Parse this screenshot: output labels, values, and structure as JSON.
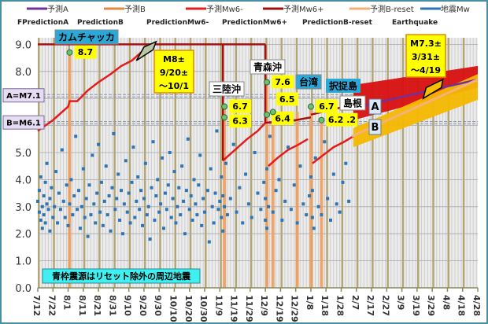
{
  "chart_data": {
    "type": "scatter",
    "title": "",
    "xlabel": "",
    "ylabel": "",
    "x_start_date": "7/12",
    "x_unit": "days since 7/12",
    "xlim": [
      0,
      290
    ],
    "ylim": [
      0,
      9.5
    ],
    "grid": true,
    "legend_position": "top",
    "legend": [
      {
        "jp": "予測A",
        "en": "FPredictionA",
        "color": "#7030a0"
      },
      {
        "jp": "予測B",
        "en": "PredictionB",
        "color": "#e08a3c"
      },
      {
        "jp": "予測Mw6-",
        "en": "PredictionMw6-",
        "color": "#e02020"
      },
      {
        "jp": "予測Mw6+",
        "en": "PredictionMw6+",
        "color": "#a01010"
      },
      {
        "jp": "予測B-reset",
        "en": "PredictionB-reset",
        "color": "#f2b070"
      },
      {
        "jp": "地震Mw",
        "en": "Earthquake",
        "color": "#2e75b6"
      }
    ],
    "x_ticks": [
      "7/12",
      "7/22",
      "8/1",
      "8/11",
      "8/21",
      "8/31",
      "9/10",
      "9/20",
      "9/30",
      "10/10",
      "10/20",
      "10/30",
      "11/9",
      "11/19",
      "11/29",
      "12/9",
      "12/19",
      "12/29",
      "1/8",
      "1/18",
      "1/28",
      "2/7",
      "2/17",
      "2/27",
      "3/9",
      "3/19",
      "3/29",
      "4/8",
      "4/18",
      "4/28"
    ],
    "y_ticks": [
      {
        "value": 0,
        "label": "0.0"
      },
      {
        "value": 1,
        "label": "1.0"
      },
      {
        "value": 2,
        "label": "2.0"
      },
      {
        "value": 3,
        "label": "3.0"
      },
      {
        "value": 4,
        "label": "4.0"
      },
      {
        "value": 5,
        "label": "5.0"
      },
      {
        "value": 8,
        "label": "8.0"
      },
      {
        "value": 9,
        "label": "9.0"
      }
    ],
    "reference_lines": [
      {
        "name": "A",
        "value": 7.1,
        "label": "A=M7.1"
      },
      {
        "name": "B",
        "value": 6.1,
        "label": "B=M6.1"
      }
    ],
    "series": [
      {
        "name": "予測Mw6-",
        "color": "#e41c1c",
        "segments": [
          [
            [
              0,
              5.8
            ],
            [
              10,
              6.2
            ],
            [
              20,
              6.7
            ],
            [
              21,
              6.9
            ],
            [
              26,
              6.9
            ],
            [
              33,
              7.3
            ],
            [
              40,
              7.6
            ],
            [
              48,
              7.9
            ],
            [
              55,
              8.2
            ],
            [
              62,
              8.4
            ],
            [
              70,
              8.8
            ],
            [
              74,
              8.9
            ]
          ],
          [
            [
              122,
              4.7
            ],
            [
              130,
              5.1
            ],
            [
              138,
              5.5
            ],
            [
              145,
              5.8
            ],
            [
              150,
              6.1
            ]
          ],
          [
            [
              152,
              4.5
            ],
            [
              158,
              4.8
            ],
            [
              165,
              5.1
            ],
            [
              172,
              5.3
            ],
            [
              178,
              5.5
            ]
          ],
          [
            [
              181,
              4.6
            ],
            [
              188,
              4.9
            ],
            [
              195,
              5.2
            ],
            [
              202,
              5.4
            ],
            [
              208,
              5.6
            ]
          ]
        ]
      },
      {
        "name": "予測Mw6+",
        "color": "#a81010",
        "segments": [
          [
            [
              0,
              9.0
            ],
            [
              150,
              9.0
            ]
          ],
          [
            [
              122,
              9.0
            ],
            [
              122,
              4.7
            ]
          ],
          [
            [
              150,
              9.0
            ],
            [
              150,
              6.1
            ]
          ],
          [
            [
              150,
              6.1
            ],
            [
              170,
              6.2
            ],
            [
              180,
              6.3
            ]
          ],
          [
            [
              180,
              6.4
            ],
            [
              195,
              6.6
            ],
            [
              210,
              6.8
            ],
            [
              216,
              6.9
            ]
          ]
        ]
      },
      {
        "name": "予測A",
        "color": "#7030a0",
        "segments": [
          [
            [
              208,
              6.65
            ],
            [
              290,
              7.7
            ]
          ]
        ]
      },
      {
        "name": "予測B-reset",
        "color": "#f4b27a",
        "segments": [
          [
            [
              207,
              5.6
            ],
            [
              290,
              7.7
            ]
          ]
        ]
      }
    ],
    "bands": [
      {
        "name": "A-range",
        "color": "#d81010",
        "upper": [
          [
            208,
            7.5
          ],
          [
            290,
            8.2
          ]
        ],
        "lower": [
          [
            208,
            6.2
          ],
          [
            290,
            7.4
          ]
        ]
      },
      {
        "name": "B-range",
        "color": "#f5b800",
        "upper": [
          [
            208,
            5.9
          ],
          [
            290,
            7.9
          ]
        ],
        "lower": [
          [
            208,
            5.2
          ],
          [
            290,
            6.95
          ]
        ]
      }
    ],
    "forecast_windows": [
      {
        "name": "M8-window",
        "points": [
          [
            65,
            8.4
          ],
          [
            76,
            8.8
          ],
          [
            78,
            9.1
          ],
          [
            70,
            8.9
          ]
        ]
      },
      {
        "name": "M7.3-window",
        "points": [
          [
            254,
            7.0
          ],
          [
            266,
            7.4
          ],
          [
            267,
            7.7
          ],
          [
            256,
            7.4
          ]
        ]
      }
    ],
    "major_quakes": [
      {
        "day": 21,
        "mags": [
          8.7
        ],
        "labels": [
          "8.7"
        ],
        "place": "カムチャッカ"
      },
      {
        "day": 123,
        "mags": [
          6.7,
          6.3
        ],
        "labels": [
          "6.7",
          "6.3"
        ],
        "place": "三陸沖"
      },
      {
        "day": 151,
        "mags": [
          7.6,
          6.4
        ],
        "labels": [
          "7.6",
          "6.4"
        ],
        "place": "青森沖"
      },
      {
        "day": 155,
        "mags": [
          6.5
        ],
        "labels": [
          "6.5"
        ],
        "place": ""
      },
      {
        "day": 171,
        "mags": [],
        "labels": [],
        "place": "台湾"
      },
      {
        "day": 180,
        "mags": [
          6.7
        ],
        "labels": [
          "6.7"
        ],
        "place": "島根"
      },
      {
        "day": 187,
        "mags": [
          6.2
        ],
        "labels": [
          "6.2 .2"
        ],
        "place": ""
      }
    ],
    "annotations": {
      "m8_callout": [
        "M8±",
        "9/20±",
        "～10/1"
      ],
      "m73_callout": [
        "M7.3±",
        "3/31±",
        "～4/19"
      ],
      "etorofu": "択捉島",
      "badge_a": "A",
      "badge_b": "B",
      "note": "青枠震源はリセット除外の周辺地震"
    },
    "points": [
      [
        0,
        3.2
      ],
      [
        1,
        2.8
      ],
      [
        1,
        3.6
      ],
      [
        2,
        2.5
      ],
      [
        2,
        4.1
      ],
      [
        3,
        3.0
      ],
      [
        3,
        2.2
      ],
      [
        4,
        3.4
      ],
      [
        4,
        2.7
      ],
      [
        5,
        3.9
      ],
      [
        5,
        2.4
      ],
      [
        6,
        3.1
      ],
      [
        6,
        4.6
      ],
      [
        7,
        2.9
      ],
      [
        8,
        3.3
      ],
      [
        8,
        2.1
      ],
      [
        9,
        3.7
      ],
      [
        10,
        2.6
      ],
      [
        11,
        3.0
      ],
      [
        12,
        4.3
      ],
      [
        13,
        2.4
      ],
      [
        14,
        3.5
      ],
      [
        15,
        2.9
      ],
      [
        16,
        5.1
      ],
      [
        17,
        3.2
      ],
      [
        18,
        2.6
      ],
      [
        19,
        3.8
      ],
      [
        20,
        2.3
      ],
      [
        21,
        3.1
      ],
      [
        22,
        4.0
      ],
      [
        23,
        2.7
      ],
      [
        24,
        3.4
      ],
      [
        25,
        5.6
      ],
      [
        26,
        2.9
      ],
      [
        27,
        3.6
      ],
      [
        28,
        2.2
      ],
      [
        29,
        3.0
      ],
      [
        30,
        4.4
      ],
      [
        31,
        2.6
      ],
      [
        32,
        3.3
      ],
      [
        33,
        1.9
      ],
      [
        34,
        3.8
      ],
      [
        35,
        2.7
      ],
      [
        36,
        4.9
      ],
      [
        37,
        3.1
      ],
      [
        38,
        2.4
      ],
      [
        39,
        3.5
      ],
      [
        40,
        5.3
      ],
      [
        41,
        2.8
      ],
      [
        42,
        3.9
      ],
      [
        43,
        2.3
      ],
      [
        44,
        3.2
      ],
      [
        45,
        4.5
      ],
      [
        46,
        2.7
      ],
      [
        47,
        3.4
      ],
      [
        48,
        2.1
      ],
      [
        49,
        3.7
      ],
      [
        50,
        5.7
      ],
      [
        51,
        2.9
      ],
      [
        52,
        3.3
      ],
      [
        53,
        4.2
      ],
      [
        54,
        2.5
      ],
      [
        55,
        3.6
      ],
      [
        56,
        2.0
      ],
      [
        57,
        3.1
      ],
      [
        58,
        4.7
      ],
      [
        59,
        2.8
      ],
      [
        60,
        3.5
      ],
      [
        61,
        2.4
      ],
      [
        62,
        3.9
      ],
      [
        63,
        5.2
      ],
      [
        64,
        2.6
      ],
      [
        65,
        3.2
      ],
      [
        66,
        4.1
      ],
      [
        67,
        2.9
      ],
      [
        68,
        3.6
      ],
      [
        69,
        2.3
      ],
      [
        70,
        3.3
      ],
      [
        71,
        4.6
      ],
      [
        72,
        2.7
      ],
      [
        73,
        3.0
      ],
      [
        74,
        1.8
      ],
      [
        75,
        3.7
      ],
      [
        76,
        5.4
      ],
      [
        77,
        2.5
      ],
      [
        78,
        3.4
      ],
      [
        79,
        4.0
      ],
      [
        80,
        2.8
      ],
      [
        81,
        3.1
      ],
      [
        82,
        4.8
      ],
      [
        83,
        2.2
      ],
      [
        84,
        3.5
      ],
      [
        85,
        2.9
      ],
      [
        86,
        3.8
      ],
      [
        87,
        5.0
      ],
      [
        88,
        2.6
      ],
      [
        89,
        3.3
      ],
      [
        90,
        4.3
      ],
      [
        91,
        2.4
      ],
      [
        92,
        3.0
      ],
      [
        93,
        3.7
      ],
      [
        94,
        2.7
      ],
      [
        95,
        4.5
      ],
      [
        96,
        3.2
      ],
      [
        97,
        2.0
      ],
      [
        98,
        3.6
      ],
      [
        99,
        5.5
      ],
      [
        100,
        2.9
      ],
      [
        101,
        3.4
      ],
      [
        102,
        2.5
      ],
      [
        103,
        4.0
      ],
      [
        104,
        3.1
      ],
      [
        105,
        2.7
      ],
      [
        106,
        3.8
      ],
      [
        107,
        4.9
      ],
      [
        108,
        2.3
      ],
      [
        109,
        3.3
      ],
      [
        110,
        2.8
      ],
      [
        112,
        3.6
      ],
      [
        113,
        1.7
      ],
      [
        114,
        4.4
      ],
      [
        115,
        3.0
      ],
      [
        116,
        2.4
      ],
      [
        117,
        3.5
      ],
      [
        118,
        5.8
      ],
      [
        119,
        2.9
      ],
      [
        120,
        3.2
      ],
      [
        121,
        4.1
      ],
      [
        121,
        2.6
      ],
      [
        122,
        3.4
      ],
      [
        122,
        2.1
      ],
      [
        123,
        3.0
      ],
      [
        124,
        4.6
      ],
      [
        125,
        2.7
      ],
      [
        127,
        3.3
      ],
      [
        129,
        5.3
      ],
      [
        131,
        2.8
      ],
      [
        133,
        3.7
      ],
      [
        135,
        2.4
      ],
      [
        137,
        4.2
      ],
      [
        139,
        3.1
      ],
      [
        141,
        2.6
      ],
      [
        143,
        5.0
      ],
      [
        145,
        3.5
      ],
      [
        147,
        2.9
      ],
      [
        149,
        3.9
      ],
      [
        150,
        2.5
      ],
      [
        150,
        3.3
      ],
      [
        151,
        4.4
      ],
      [
        151,
        2.2
      ],
      [
        152,
        3.0
      ],
      [
        153,
        5.6
      ],
      [
        155,
        2.8
      ],
      [
        157,
        3.6
      ],
      [
        159,
        4.0
      ],
      [
        161,
        2.5
      ],
      [
        163,
        3.2
      ],
      [
        165,
        5.2
      ],
      [
        167,
        2.9
      ],
      [
        169,
        3.8
      ],
      [
        171,
        2.4
      ],
      [
        173,
        4.5
      ],
      [
        175,
        3.1
      ],
      [
        177,
        2.7
      ],
      [
        179,
        3.4
      ],
      [
        180,
        4.1
      ],
      [
        181,
        2.6
      ],
      [
        181,
        3.6
      ],
      [
        182,
        2.2
      ],
      [
        183,
        4.8
      ],
      [
        185,
        3.0
      ],
      [
        187,
        2.7
      ],
      [
        189,
        5.4
      ],
      [
        191,
        3.3
      ],
      [
        193,
        2.5
      ],
      [
        195,
        4.2
      ],
      [
        197,
        3.1
      ],
      [
        199,
        2.8
      ],
      [
        201,
        3.9
      ],
      [
        203,
        4.6
      ],
      [
        205,
        3.2
      ]
    ]
  }
}
